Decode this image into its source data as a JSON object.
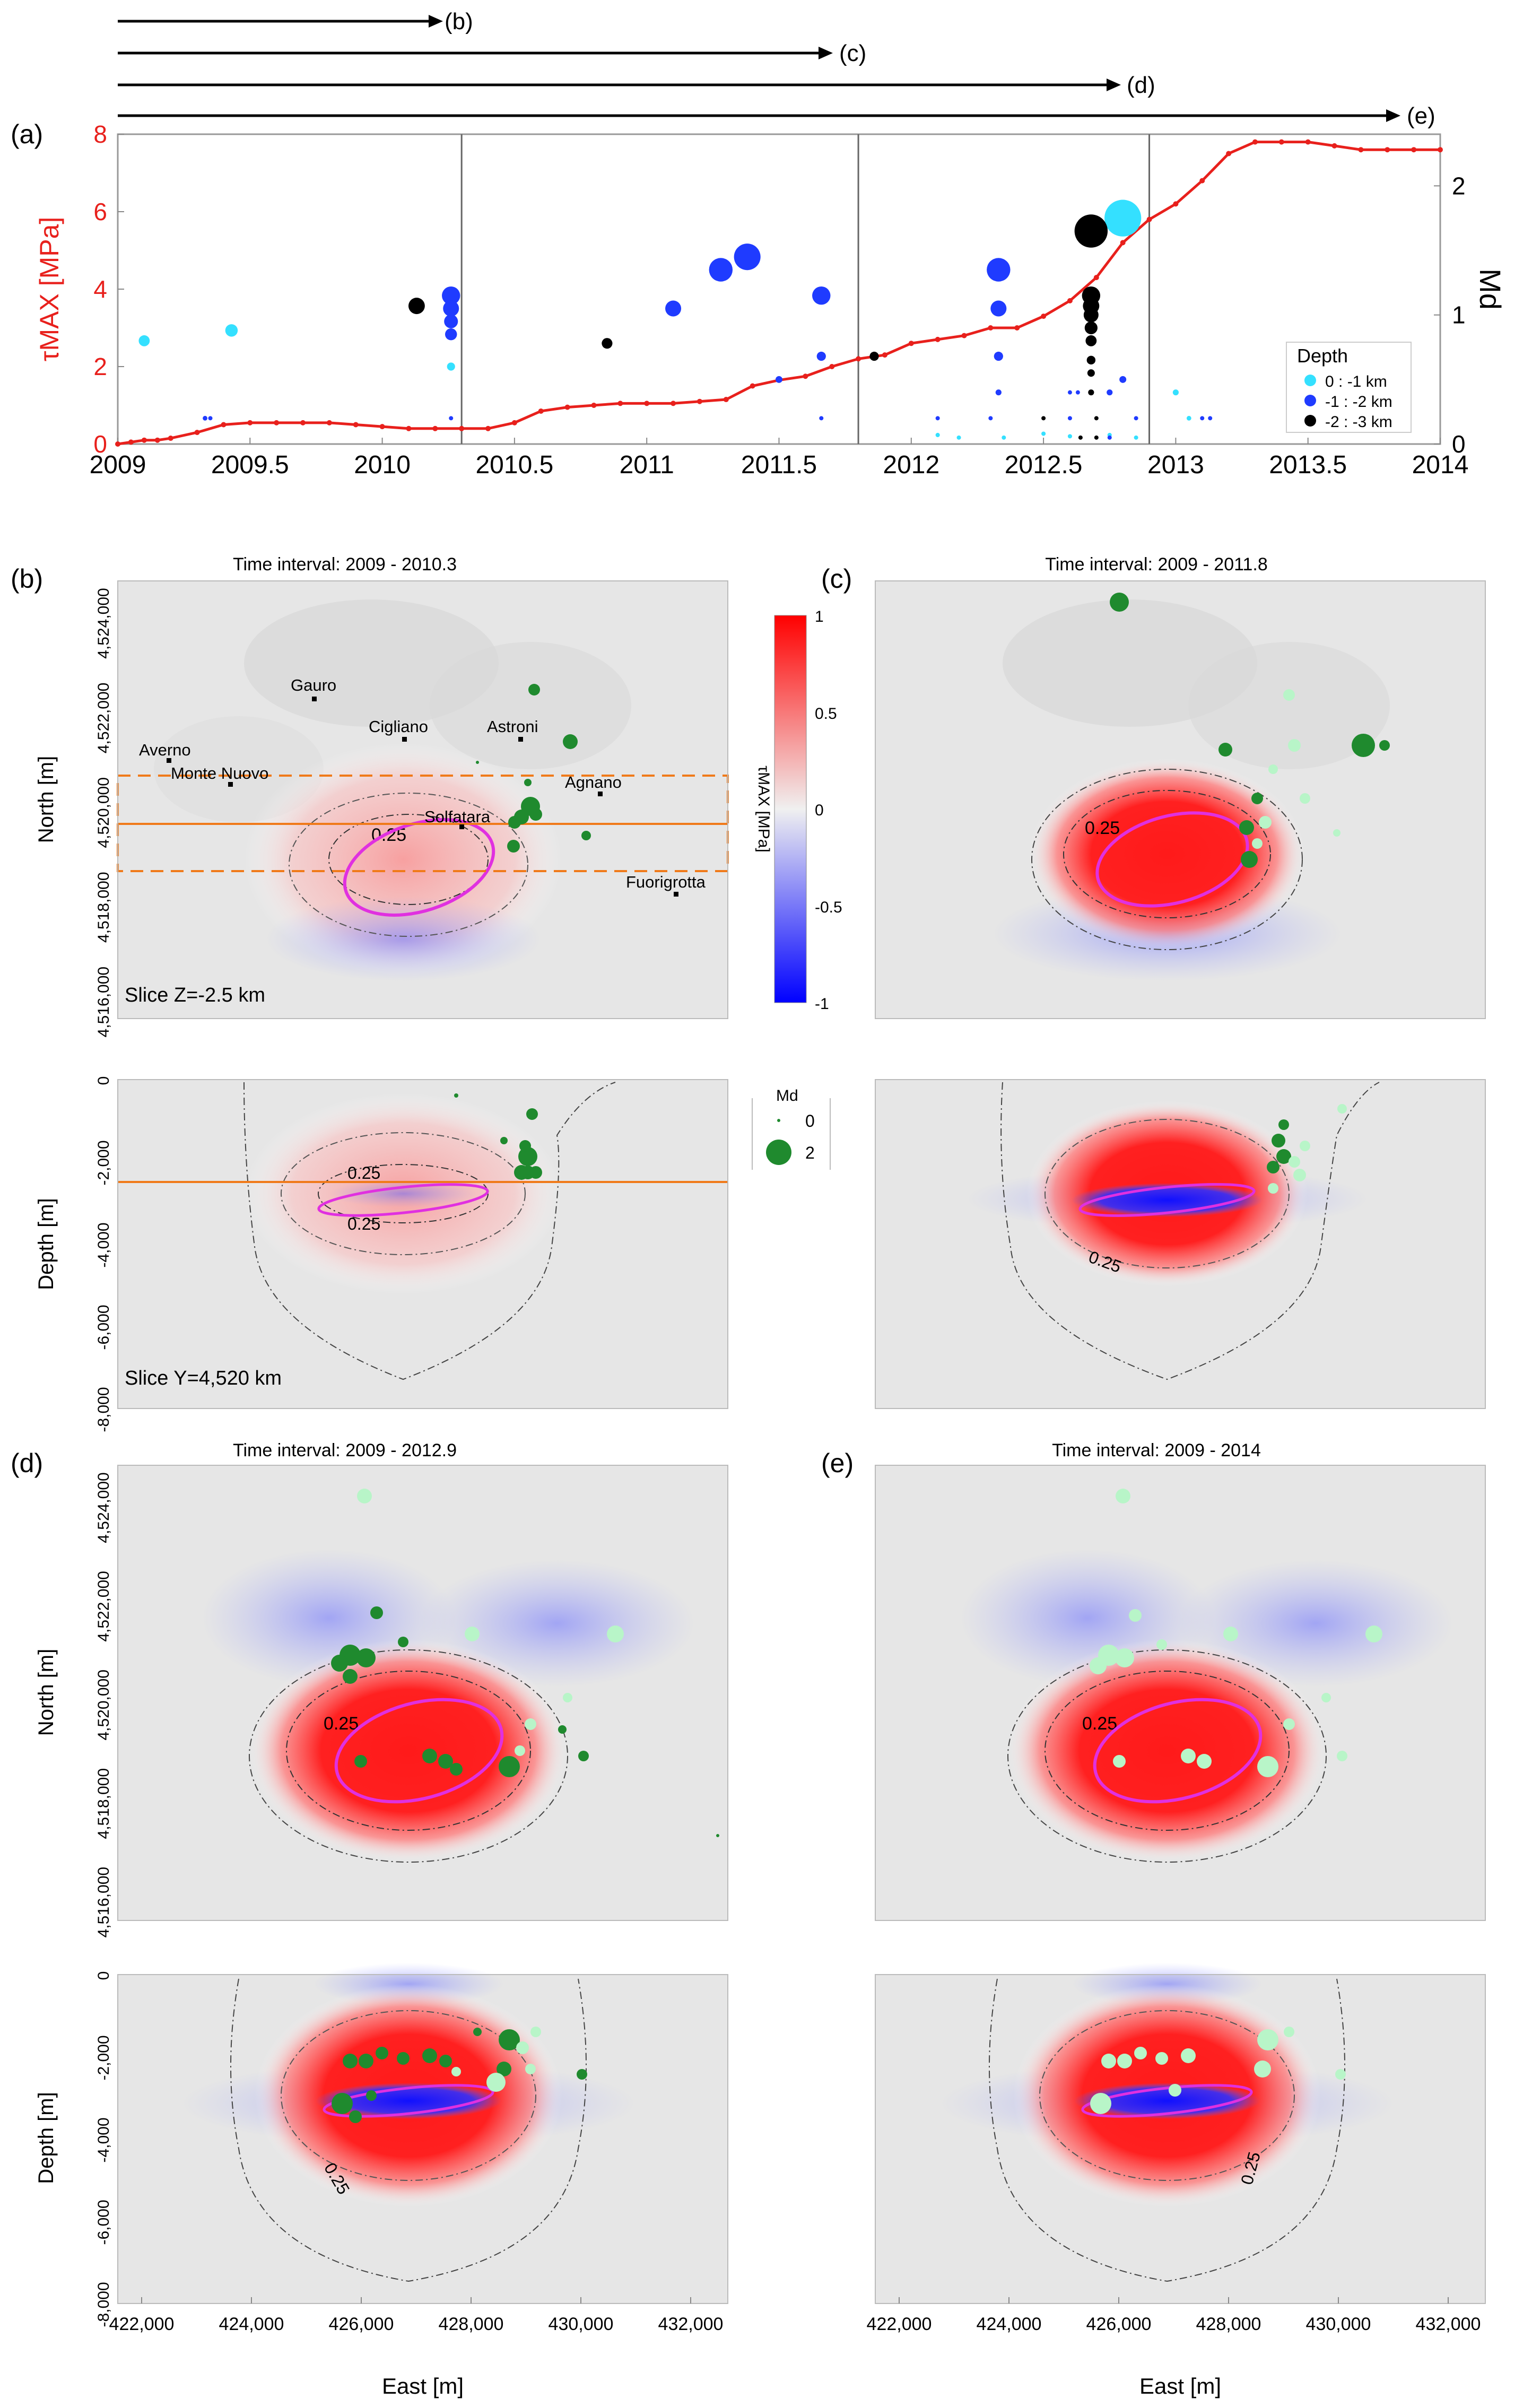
{
  "panel_labels": {
    "a": "(a)",
    "b": "(b)",
    "c": "(c)",
    "d": "(d)",
    "e": "(e)"
  },
  "arrows": [
    "(b)",
    "(c)",
    "(d)",
    "(e)"
  ],
  "panel_a": {
    "ylabel_left": "τMAX [MPa]",
    "ylabel_right": "Md",
    "left_ticks": [
      "0",
      "2",
      "4",
      "6",
      "8"
    ],
    "right_ticks": [
      "0",
      "1",
      "2"
    ],
    "x_ticks": [
      "2009",
      "2009.5",
      "2010",
      "2010.5",
      "2011",
      "2011.5",
      "2012",
      "2012.5",
      "2013",
      "2013.5",
      "2014"
    ],
    "legend": {
      "title": "Depth",
      "items": [
        "0 : -1 km",
        "-1 : -2 km",
        "-2 : -3 km"
      ]
    }
  },
  "maps": {
    "titles": [
      "Time interval: 2009 - 2010.3",
      "Time interval: 2009 - 2011.8",
      "Time interval: 2009 - 2012.9",
      "Time interval: 2009 - 2014"
    ],
    "north_label": "North [m]",
    "depth_label": "Depth [m]",
    "east_label": "East [m]",
    "north_ticks": [
      "4,524,000",
      "4,522,000",
      "4,520,000",
      "4,518,000",
      "4,516,000"
    ],
    "depth_ticks": [
      "0",
      "-2,000",
      "-4,000",
      "-6,000",
      "-8,000"
    ],
    "east_ticks": [
      "422,000",
      "424,000",
      "426,000",
      "428,000",
      "430,000",
      "432,000"
    ],
    "places": [
      "Gauro",
      "Cigliano",
      "Astroni",
      "Averno",
      "Monte Nuovo",
      "Agnano",
      "Solfatara",
      "Fuorigrotta"
    ],
    "slice_z": "Slice Z=-2.5 km",
    "slice_y": "Slice Y=4,520 km",
    "contour": "0.25"
  },
  "colorbar": {
    "label": "τMAX [MPa]",
    "ticks": [
      "1",
      "0.5",
      "0",
      "-0.5",
      "-1"
    ]
  },
  "size_legend": {
    "title": "Md",
    "items": [
      "0",
      "2"
    ]
  },
  "colors": {
    "tau": "#e8201c",
    "shallow": "#34e0ff",
    "mid": "#1f3bff",
    "deep": "#000000",
    "quake": "#1f8a2e",
    "old_quake": "#b8f5c8",
    "ellipse": "#e030e0"
  },
  "chart_data": {
    "type": "line",
    "title": "",
    "xlabel": "",
    "ylabel": "τMAX [MPa]",
    "ylabel_right": "Md",
    "xlim": [
      2009,
      2014
    ],
    "ylim": [
      0,
      8
    ],
    "ylim_right": [
      0,
      2.4
    ],
    "series": [
      {
        "name": "τMAX",
        "x": [
          2009.0,
          2009.05,
          2009.1,
          2009.15,
          2009.2,
          2009.3,
          2009.4,
          2009.5,
          2009.6,
          2009.7,
          2009.8,
          2009.9,
          2010.0,
          2010.1,
          2010.2,
          2010.3,
          2010.4,
          2010.5,
          2010.6,
          2010.7,
          2010.8,
          2010.9,
          2011.0,
          2011.1,
          2011.2,
          2011.3,
          2011.4,
          2011.5,
          2011.6,
          2011.7,
          2011.8,
          2011.9,
          2012.0,
          2012.1,
          2012.2,
          2012.3,
          2012.4,
          2012.5,
          2012.6,
          2012.7,
          2012.8,
          2012.9,
          2013.0,
          2013.1,
          2013.2,
          2013.3,
          2013.4,
          2013.5,
          2013.6,
          2013.7,
          2013.8,
          2013.9,
          2014.0
        ],
        "values": [
          0.0,
          0.05,
          0.1,
          0.1,
          0.15,
          0.3,
          0.5,
          0.55,
          0.55,
          0.55,
          0.55,
          0.5,
          0.45,
          0.4,
          0.4,
          0.4,
          0.4,
          0.55,
          0.85,
          0.95,
          1.0,
          1.05,
          1.05,
          1.05,
          1.1,
          1.15,
          1.5,
          1.65,
          1.75,
          2.0,
          2.2,
          2.3,
          2.6,
          2.7,
          2.8,
          3.0,
          3.0,
          3.3,
          3.7,
          4.3,
          5.2,
          5.8,
          6.2,
          6.8,
          7.5,
          7.8,
          7.8,
          7.8,
          7.7,
          7.6,
          7.6,
          7.6,
          7.6
        ]
      },
      {
        "name": "Md 0 : -1 km",
        "x": [
          2009.1,
          2009.43,
          2010.26,
          2012.1,
          2012.5,
          2012.6,
          2012.75,
          2012.8,
          2013.0,
          2013.05
        ],
        "values": [
          0.8,
          0.88,
          0.6,
          0.07,
          0.08,
          0.06,
          0.07,
          1.75,
          0.4,
          0.2
        ]
      },
      {
        "name": "Md -1 : -2 km",
        "x": [
          2009.33,
          2010.26,
          2010.26,
          2010.26,
          2010.26,
          2011.1,
          2011.28,
          2011.38,
          2011.5,
          2011.66,
          2011.66,
          2012.33,
          2012.33,
          2012.33,
          2012.33,
          2012.75,
          2012.8
        ],
        "values": [
          0.2,
          1.15,
          1.05,
          0.95,
          0.85,
          1.05,
          1.35,
          1.45,
          0.5,
          1.15,
          0.68,
          1.35,
          1.05,
          0.68,
          0.4,
          0.4,
          0.5
        ],
        "note": "bubble size proportional to Md"
      },
      {
        "name": "Md -2 : -3 km",
        "x": [
          2010.13,
          2010.85,
          2011.86,
          2012.68,
          2012.68,
          2012.68,
          2012.68,
          2012.68,
          2012.68,
          2012.68,
          2012.68,
          2012.68
        ],
        "values": [
          1.07,
          0.78,
          0.68,
          1.65,
          1.15,
          1.07,
          1.0,
          0.9,
          0.8,
          0.65,
          0.55,
          0.4
        ]
      }
    ],
    "annotations": [
      "vertical line 2010.3",
      "vertical line 2011.8",
      "vertical line 2012.9"
    ]
  }
}
